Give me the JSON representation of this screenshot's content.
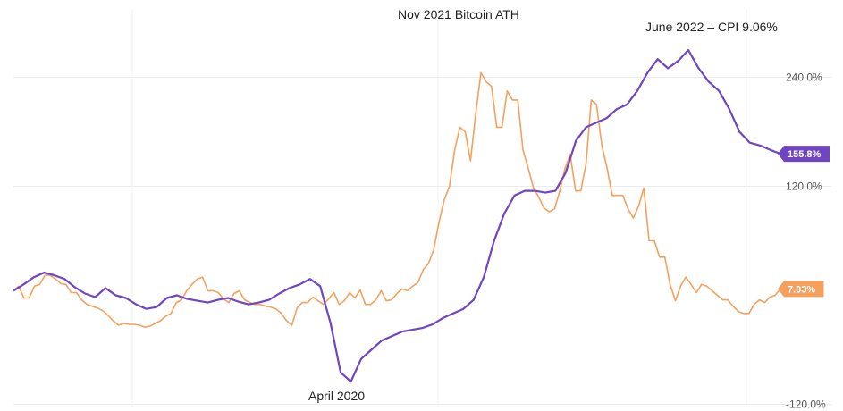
{
  "chart_data": {
    "type": "line",
    "title": "",
    "xlabel": "",
    "ylabel": "",
    "ylim": [
      -120,
      275
    ],
    "grid": true,
    "yticks": [
      {
        "value": 240,
        "label": "240.0%"
      },
      {
        "value": 120,
        "label": "120.0%"
      },
      {
        "value": -120,
        "label": "-120.0%"
      }
    ],
    "series": [
      {
        "color": "#f5a05c",
        "end_label": "7.03%",
        "values": [
          5,
          10,
          -3,
          -3,
          10,
          12,
          22,
          22,
          18,
          13,
          12,
          3,
          3,
          -5,
          -10,
          -12,
          -14,
          -17,
          -22,
          -28,
          -33,
          -31,
          -32,
          -32,
          -33,
          -35,
          -34,
          -31,
          -28,
          -23,
          -20,
          -8,
          -5,
          5,
          12,
          18,
          20,
          5,
          5,
          3,
          -4,
          -8,
          2,
          5,
          -5,
          -8,
          -10,
          -10,
          -12,
          -13,
          -15,
          -20,
          -28,
          -33,
          -14,
          -8,
          -8,
          -2,
          -6,
          -10,
          -4,
          3,
          -10,
          -6,
          3,
          -3,
          6,
          -10,
          -10,
          -5,
          5,
          -6,
          -5,
          2,
          7,
          5,
          10,
          14,
          28,
          35,
          50,
          80,
          105,
          120,
          160,
          185,
          180,
          148,
          200,
          245,
          235,
          230,
          185,
          185,
          225,
          215,
          215,
          160,
          140,
          118,
          108,
          96,
          92,
          95,
          115,
          140,
          155,
          115,
          115,
          145,
          215,
          210,
          165,
          140,
          110,
          110,
          110,
          95,
          85,
          98,
          118,
          60,
          60,
          42,
          42,
          12,
          -6,
          10,
          20,
          12,
          3,
          12,
          10,
          5,
          0,
          -5,
          -5,
          -12,
          -18,
          -20,
          -20,
          -10,
          -5,
          -8,
          -2,
          0,
          7.03
        ]
      },
      {
        "color": "#6f45c2",
        "end_label": "155.8%",
        "values": [
          5,
          12,
          20,
          25,
          22,
          18,
          9,
          2,
          -2,
          8,
          0,
          -3,
          -10,
          -15,
          -13,
          -3,
          0,
          -4,
          -6,
          -8,
          -5,
          -3,
          -7,
          -10,
          -8,
          -5,
          2,
          8,
          12,
          18,
          10,
          -30,
          -85,
          -95,
          -70,
          -60,
          -50,
          -45,
          -40,
          -38,
          -36,
          -32,
          -25,
          -20,
          -15,
          -5,
          20,
          60,
          90,
          110,
          115,
          115,
          113,
          115,
          135,
          170,
          185,
          190,
          195,
          205,
          210,
          225,
          245,
          260,
          250,
          258,
          270,
          250,
          235,
          225,
          205,
          180,
          168,
          165,
          160,
          155.8
        ]
      }
    ],
    "annotations": [
      {
        "text": "Nov 2021 Bitcoin ATH"
      },
      {
        "text": "June 2022 – CPI 9.06%"
      },
      {
        "text": "April 2020"
      }
    ]
  }
}
